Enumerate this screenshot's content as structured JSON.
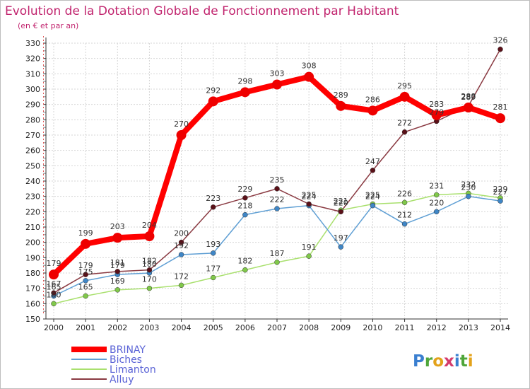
{
  "chart_data": {
    "type": "line",
    "title": "Evolution de la Dotation Globale de Fonctionnement par Habitant",
    "subtitle": "(en € et par an)",
    "xlabel": "",
    "ylabel": "",
    "ylim": [
      150,
      330
    ],
    "yticks": [
      150,
      160,
      170,
      180,
      190,
      200,
      210,
      220,
      230,
      240,
      250,
      260,
      270,
      280,
      290,
      300,
      310,
      320,
      330
    ],
    "categories": [
      "2000",
      "2001",
      "2002",
      "2003",
      "2004",
      "2005",
      "2006",
      "2007",
      "2008",
      "2009",
      "2010",
      "2011",
      "2012",
      "2013",
      "2014"
    ],
    "legend_position": "bottom-left",
    "series": [
      {
        "name": "BRINAY",
        "color": "#ff0000",
        "marker": "#ee0000",
        "values": [
          179,
          199,
          203,
          204,
          270,
          292,
          298,
          303,
          308,
          289,
          286,
          295,
          283,
          288,
          281
        ]
      },
      {
        "name": "Biches",
        "color": "#5f9fd4",
        "marker": "#3f86c6",
        "values": [
          165,
          175,
          179,
          180,
          192,
          193,
          218,
          222,
          224,
          197,
          224,
          212,
          220,
          230,
          227
        ]
      },
      {
        "name": "Limanton",
        "color": "#a9e06e",
        "marker": "#80c84a",
        "values": [
          160,
          165,
          169,
          170,
          172,
          177,
          182,
          187,
          191,
          221,
          225,
          226,
          231,
          232,
          229
        ]
      },
      {
        "name": "Alluy",
        "color": "#8a3a42",
        "marker": "#5a1018",
        "values": [
          167,
          179,
          181,
          182,
          200,
          223,
          229,
          235,
          225,
          220,
          247,
          272,
          279,
          289,
          326
        ]
      }
    ]
  },
  "logo": {
    "text": "Proxiti"
  }
}
